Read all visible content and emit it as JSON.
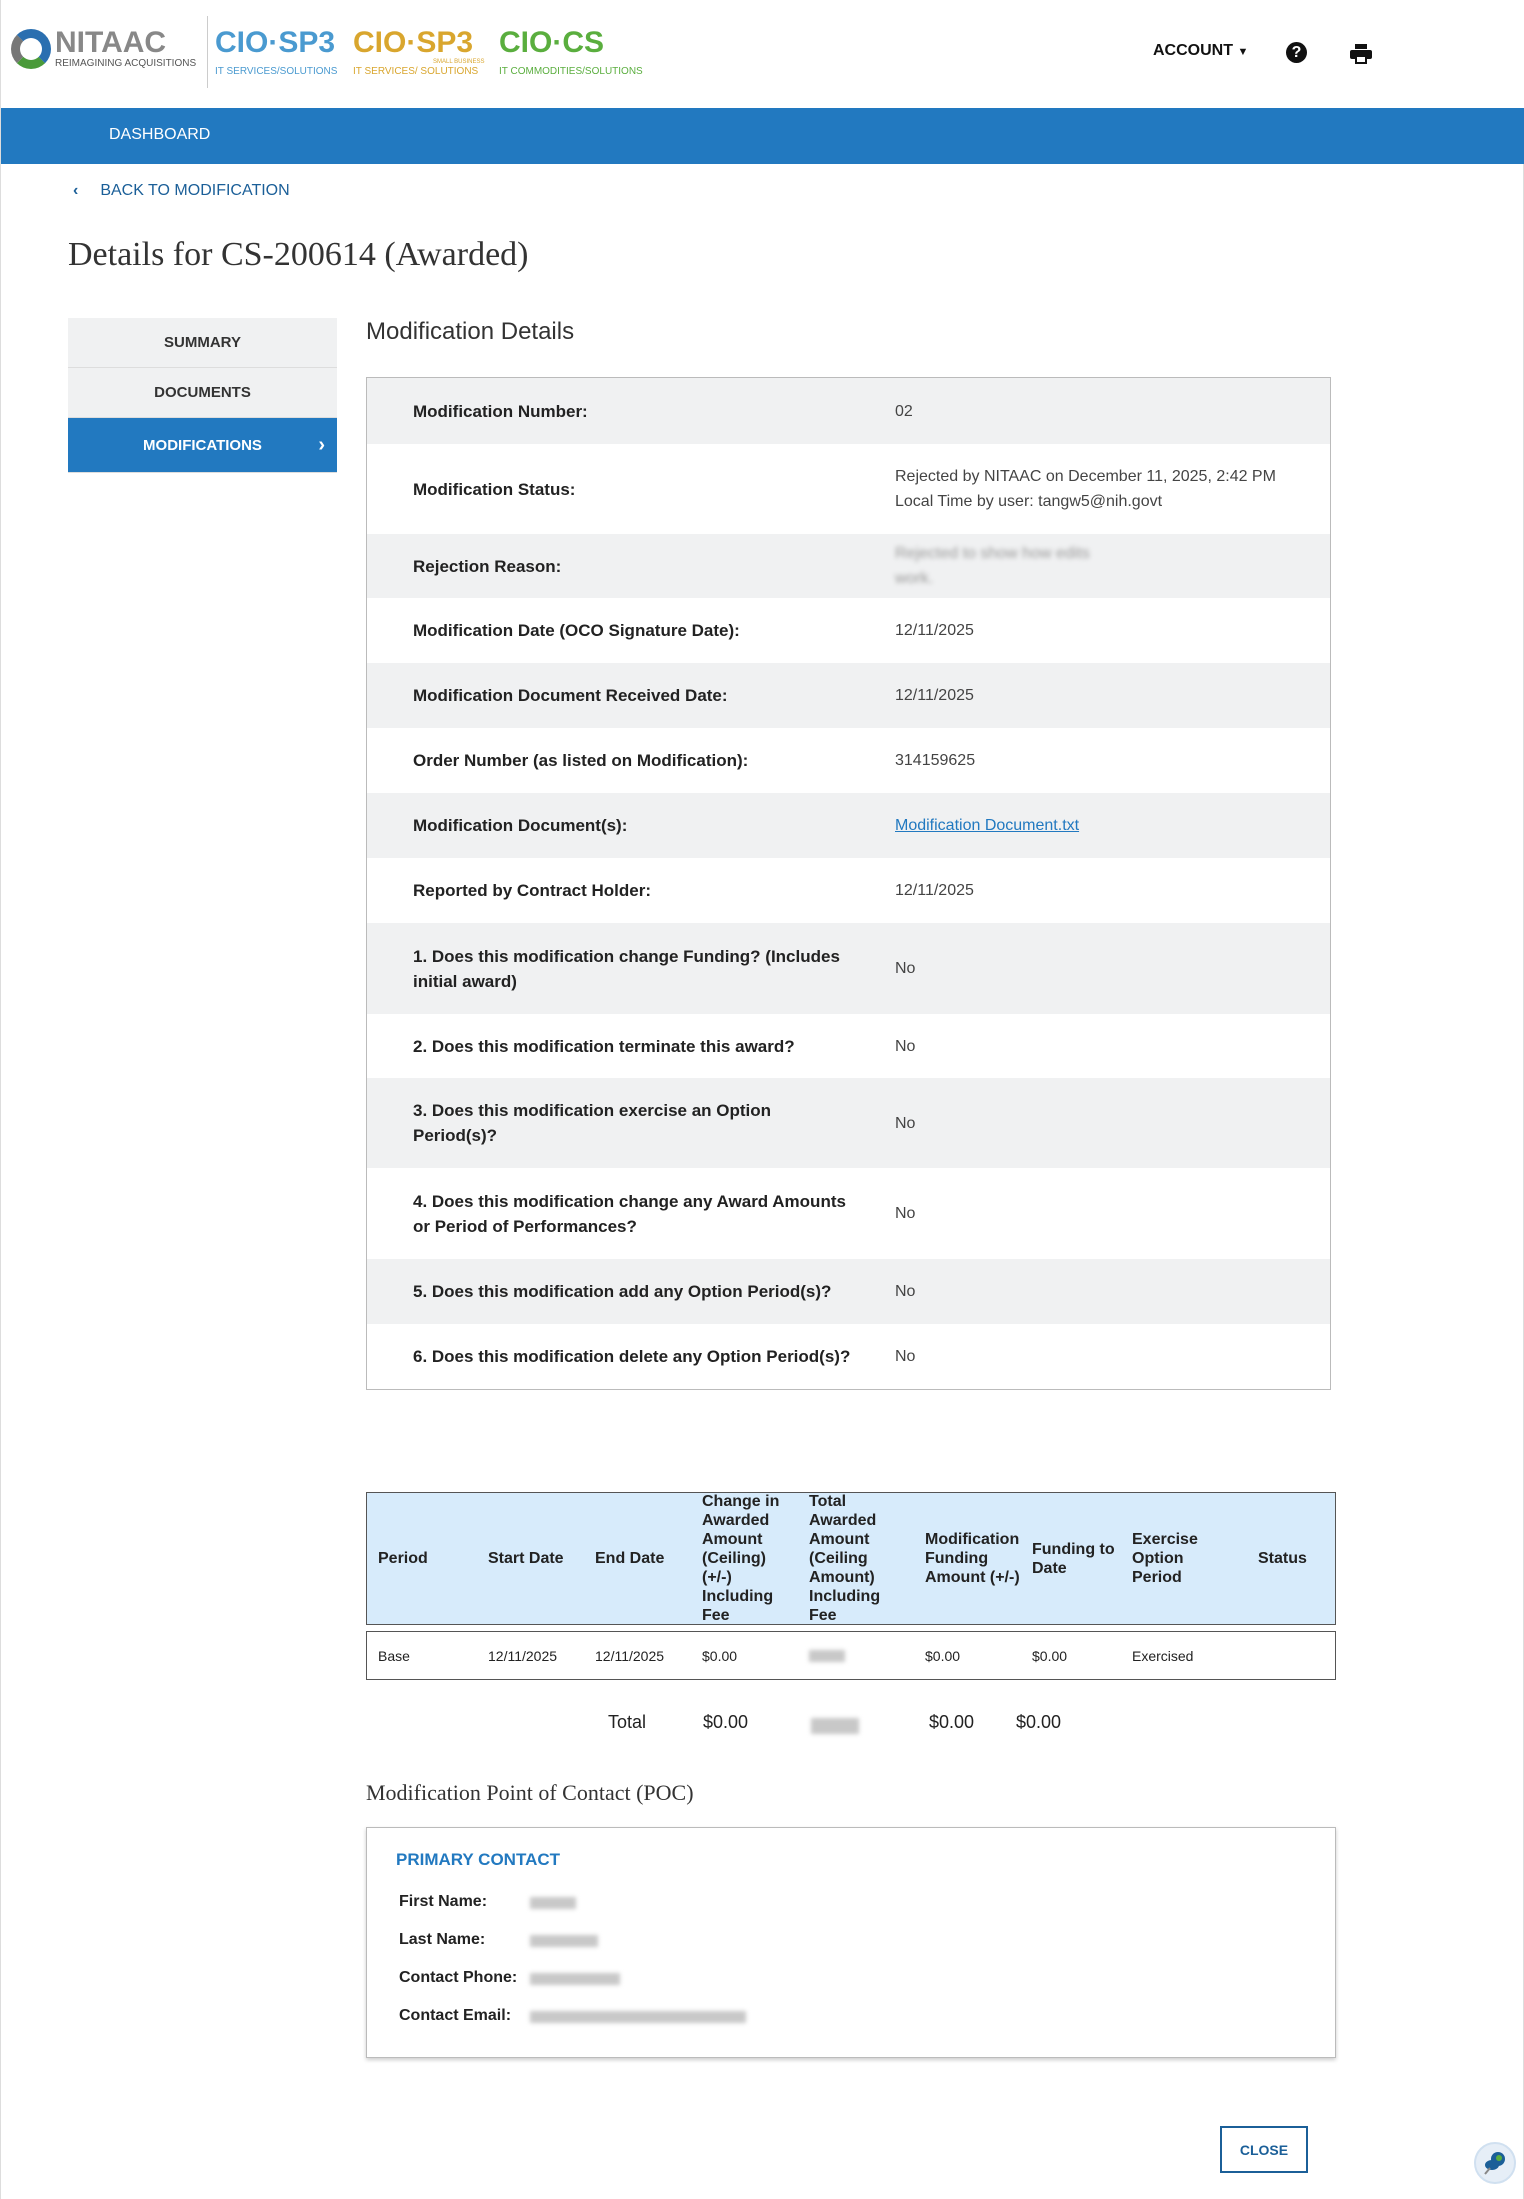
{
  "header": {
    "logo_text": "NITAAC",
    "logo_tagline": "REIMAGINING ACQUISITIONS",
    "brands": [
      {
        "name": "CIO·SP3",
        "sub": "IT SERVICES/SOLUTIONS",
        "color": "#4a9ad0"
      },
      {
        "name": "CIO·SP3",
        "sub": "IT SERVICES/ SOLUTIONS",
        "extra": "SMALL BUSINESS",
        "color": "#d9a62e"
      },
      {
        "name": "CIO·CS",
        "sub": "IT COMMODITIES/SOLUTIONS",
        "color": "#5aae3e"
      }
    ],
    "account_label": "ACCOUNT",
    "help_icon": "question-circle-icon",
    "print_icon": "printer-icon"
  },
  "nav": {
    "dashboard": "DASHBOARD"
  },
  "back_link": "BACK TO MODIFICATION",
  "page_title": "Details for CS-200614 (Awarded)",
  "sidebar": {
    "items": [
      {
        "label": "SUMMARY"
      },
      {
        "label": "DOCUMENTS"
      },
      {
        "label": "MODIFICATIONS",
        "active": true
      }
    ]
  },
  "details": {
    "heading": "Modification Details",
    "rows": [
      {
        "label": "Modification Number:",
        "value": "02"
      },
      {
        "label": "Modification Status:",
        "value": "Rejected by NITAAC on December 11, 2025, 2:42 PM Local Time by user: tangw5@nih.govt"
      },
      {
        "label": "Rejection Reason:",
        "value": "Rejected to show how edits work.",
        "redacted": true
      },
      {
        "label": "Modification Date (OCO Signature Date):",
        "value": "12/11/2025"
      },
      {
        "label": "Modification Document Received Date:",
        "value": "12/11/2025"
      },
      {
        "label": "Order Number (as listed on Modification):",
        "value": "314159625"
      },
      {
        "label": "Modification Document(s):",
        "value": "Modification Document.txt",
        "link": true
      },
      {
        "label": "Reported by Contract Holder:",
        "value": "12/11/2025"
      },
      {
        "label": "1. Does this modification change Funding? (Includes initial award)",
        "value": "No"
      },
      {
        "label": "2. Does this modification terminate this award?",
        "value": "No"
      },
      {
        "label": "3. Does this modification exercise an Option Period(s)?",
        "value": "No"
      },
      {
        "label": "4. Does this modification change any Award Amounts or Period of Performances?",
        "value": "No"
      },
      {
        "label": "5. Does this modification add any Option Period(s)?",
        "value": "No"
      },
      {
        "label": "6. Does this modification delete any Option Period(s)?",
        "value": "No"
      }
    ]
  },
  "periods": {
    "headers": [
      "Period",
      "Start Date",
      "End Date",
      "Change in Awarded Amount (Ceiling) (+/-) Including Fee",
      "Total Awarded Amount (Ceiling Amount) Including Fee",
      "Modification Funding Amount (+/-)",
      "Funding to Date",
      "Exercise Option Period",
      "Status"
    ],
    "rows": [
      [
        "Base",
        "12/11/2025",
        "12/11/2025",
        "$0.00",
        "",
        "$0.00",
        "$0.00",
        "Exercised",
        ""
      ]
    ],
    "total": {
      "label": "Total",
      "change": "$0.00",
      "mod_funding": "$0.00",
      "funding_to_date": "$0.00"
    }
  },
  "poc": {
    "heading": "Modification Point of Contact (POC)",
    "title": "PRIMARY CONTACT",
    "fields": [
      {
        "label": "First Name:"
      },
      {
        "label": "Last Name:"
      },
      {
        "label": "Contact Phone:"
      },
      {
        "label": "Contact Email:"
      }
    ]
  },
  "close_label": "CLOSE"
}
